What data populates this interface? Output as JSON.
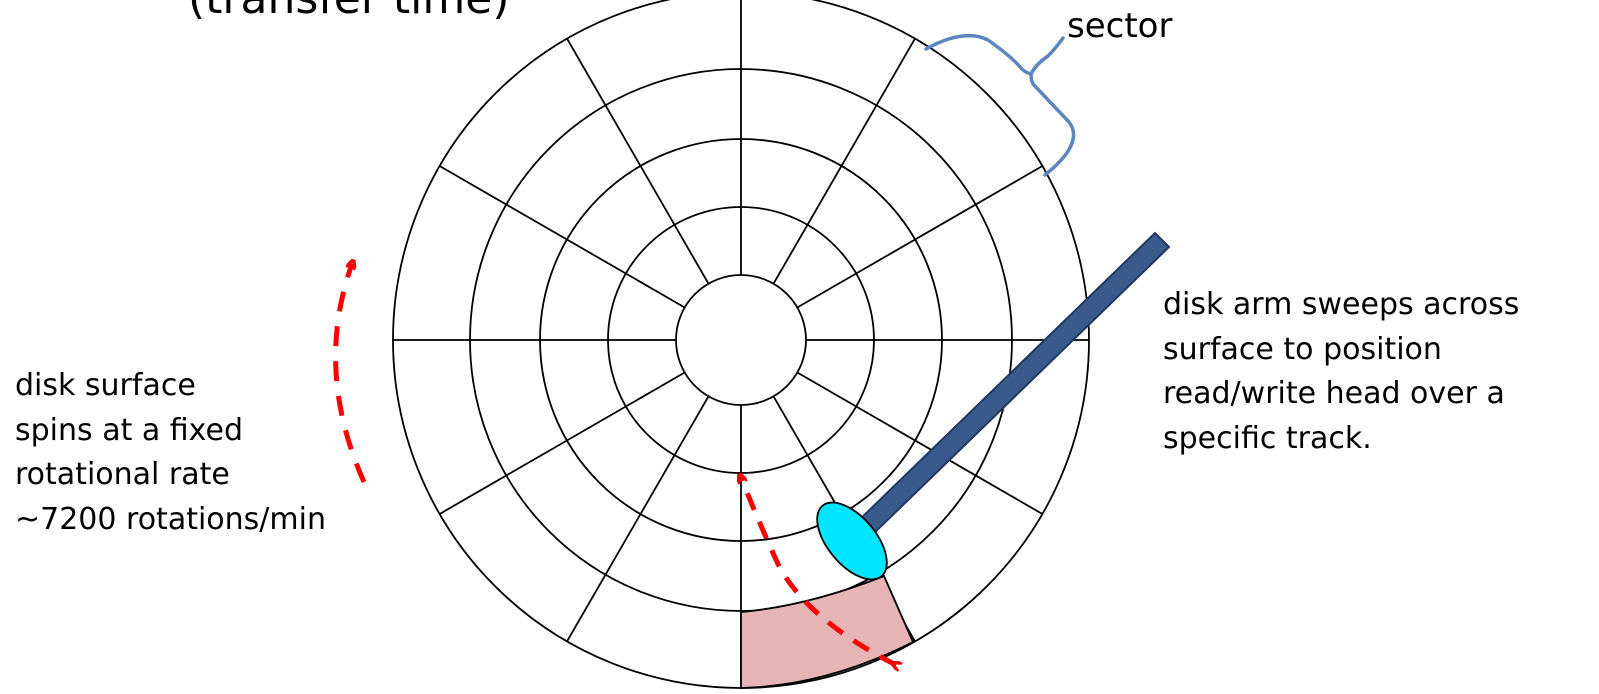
{
  "title": "(transfer time)",
  "sector_label": "sector",
  "arm_caption": [
    "disk arm sweeps across",
    "surface to position",
    "read/write head over a",
    "specific  track."
  ],
  "spin_caption": [
    "disk surface",
    "spins at a fixed",
    "rotational rate",
    "~7200 rotations/min"
  ],
  "colors": {
    "platter_lines": "#000000",
    "arm_fill": "#3a5a8c",
    "arm_stroke": "#1f3864",
    "head_fill": "#00e5ff",
    "highlighted_sector_fill": "#e6b4b4",
    "rotation_arrow": "#ff0000",
    "sector_brace": "#5b86c0"
  },
  "icons": {
    "arm": "disk-arm",
    "head": "read-write-head",
    "rotation": "rotation-arrow"
  }
}
